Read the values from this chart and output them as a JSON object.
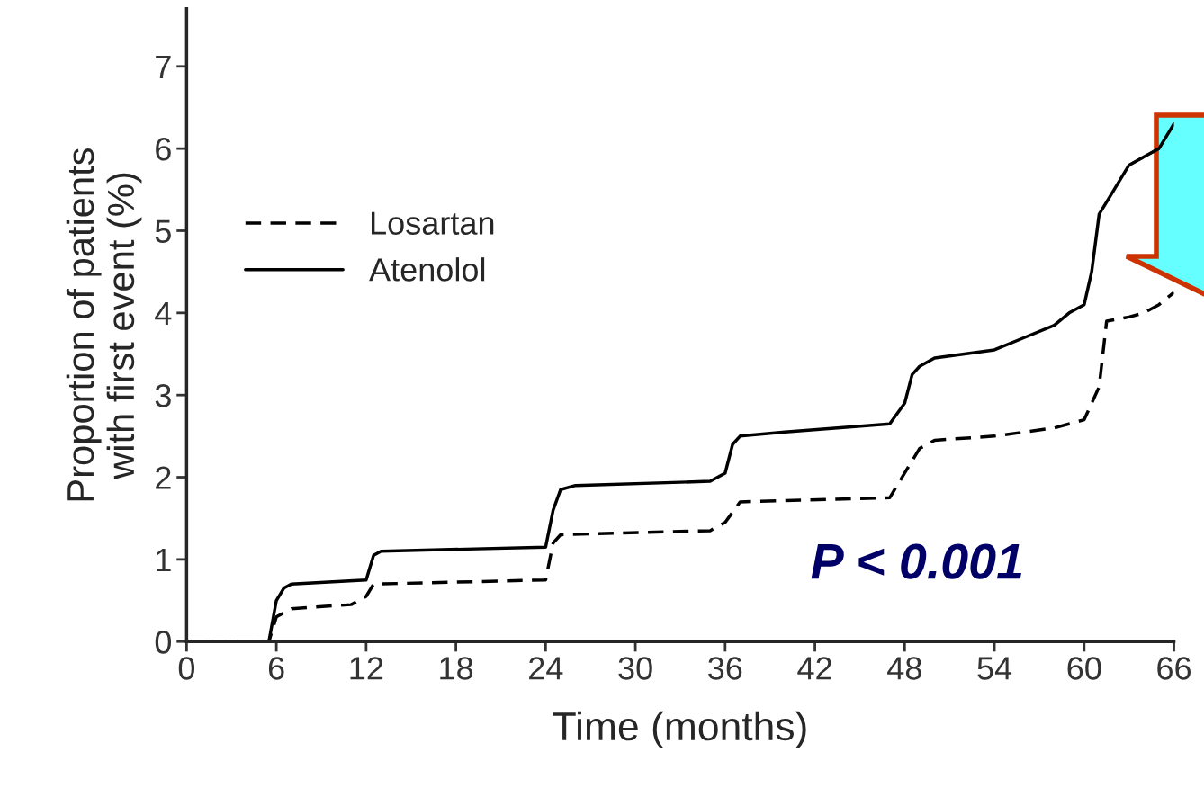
{
  "chart_data": {
    "type": "line",
    "xlabel": "Time (months)",
    "ylabel": "Proportion of patients\nwith first event (%)",
    "xlim": [
      0,
      66
    ],
    "xticks": [
      0,
      6,
      12,
      18,
      24,
      30,
      36,
      42,
      48,
      54,
      60,
      66
    ],
    "ylim": [
      0,
      7.7
    ],
    "yticks": [
      0,
      1,
      2,
      3,
      4,
      5,
      6,
      7
    ],
    "grid": false,
    "legend": "left",
    "annotations": [
      "P < 0.001"
    ],
    "series": [
      {
        "name": "Losartan",
        "color": "#000000",
        "line_style": "dashed",
        "x": [
          0,
          5.5,
          6,
          7,
          11,
          12,
          12.5,
          24,
          24.5,
          25,
          35,
          36,
          37,
          47,
          48,
          49,
          50,
          54,
          58,
          60,
          61,
          61.5,
          63,
          64,
          65,
          66
        ],
        "values": [
          0,
          0,
          0.3,
          0.4,
          0.45,
          0.55,
          0.7,
          0.75,
          1.2,
          1.3,
          1.35,
          1.45,
          1.7,
          1.75,
          2.05,
          2.35,
          2.45,
          2.5,
          2.6,
          2.7,
          3.1,
          3.9,
          3.95,
          4.0,
          4.1,
          4.25
        ]
      },
      {
        "name": "Atenolol",
        "color": "#000000",
        "line_style": "solid",
        "x": [
          0,
          5.5,
          6,
          6.5,
          7,
          12,
          12.5,
          13,
          24,
          24.5,
          25,
          26,
          35,
          36,
          36.5,
          37,
          40,
          47,
          48,
          48.5,
          49,
          50,
          54,
          56,
          58,
          59,
          60,
          60.5,
          61,
          62,
          63,
          64,
          65,
          66
        ],
        "values": [
          0,
          0,
          0.5,
          0.65,
          0.7,
          0.75,
          1.05,
          1.1,
          1.15,
          1.6,
          1.85,
          1.9,
          1.95,
          2.05,
          2.4,
          2.5,
          2.55,
          2.65,
          2.9,
          3.25,
          3.35,
          3.45,
          3.55,
          3.7,
          3.85,
          4.0,
          4.1,
          4.5,
          5.2,
          5.5,
          5.8,
          5.9,
          6.0,
          6.3
        ]
      }
    ]
  }
}
